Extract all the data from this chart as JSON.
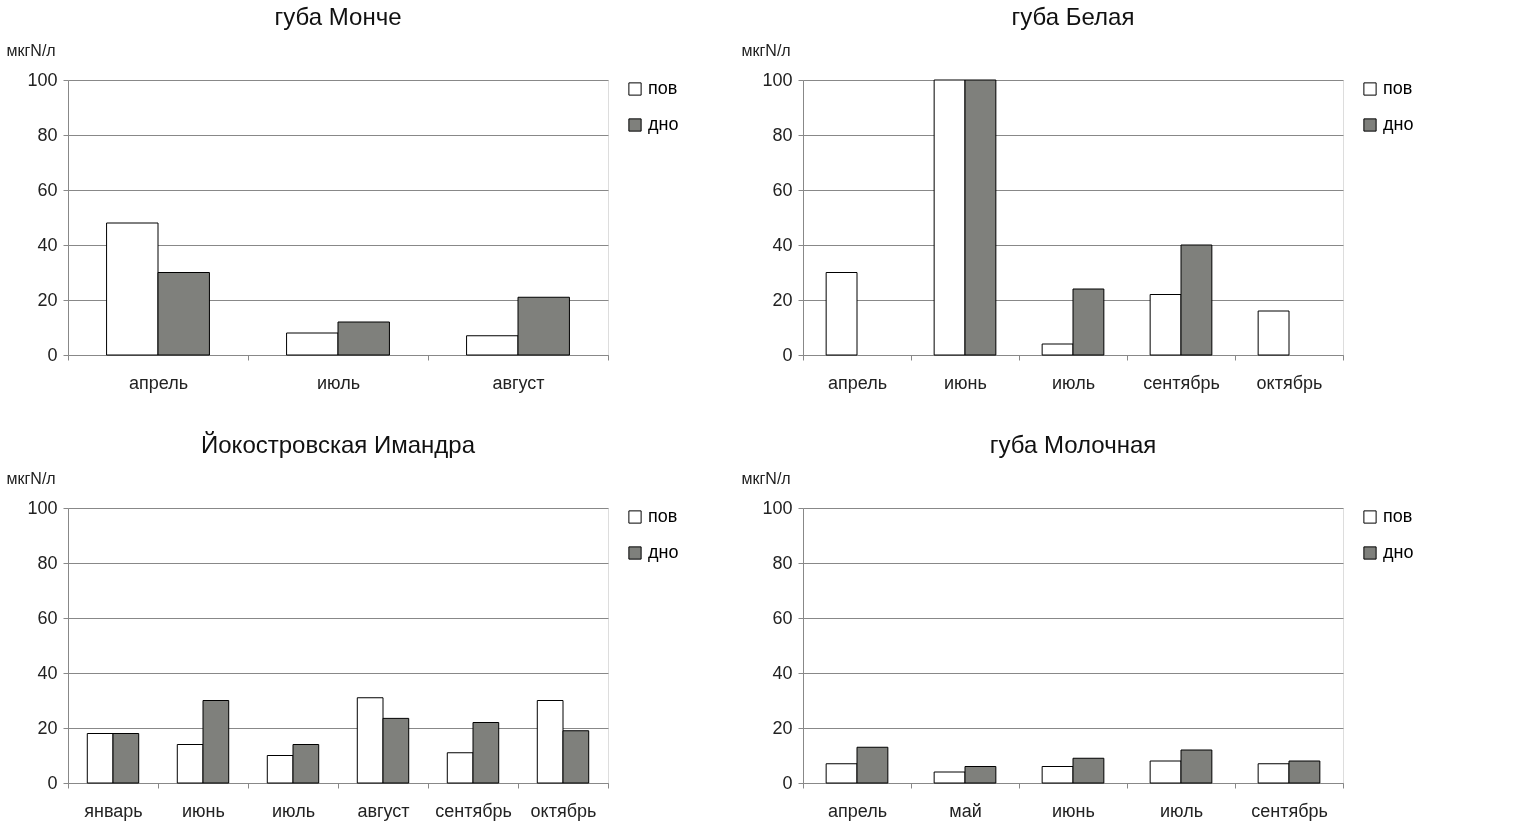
{
  "chart_data": [
    {
      "type": "bar",
      "title": "губа Монче",
      "ylabel": "мкгN/л",
      "categories": [
        "апрель",
        "июль",
        "август"
      ],
      "series": [
        {
          "name": "пов",
          "color": "#ffffff",
          "values": [
            48,
            8,
            7
          ]
        },
        {
          "name": "дно",
          "color": "#7f807c",
          "values": [
            30,
            12,
            21
          ]
        }
      ],
      "ylim": [
        0,
        100
      ],
      "yticks": [
        0,
        20,
        40,
        60,
        80,
        100
      ],
      "grid": "y",
      "legend": "right"
    },
    {
      "type": "bar",
      "title": "губа Белая",
      "ylabel": "мкгN/л",
      "categories": [
        "апрель",
        "июнь",
        "июль",
        "сентябрь",
        "октябрь"
      ],
      "series": [
        {
          "name": "пов",
          "color": "#ffffff",
          "values": [
            30,
            100,
            4,
            22,
            16
          ]
        },
        {
          "name": "дно",
          "color": "#7f807c",
          "values": [
            null,
            100,
            24,
            40,
            null
          ]
        }
      ],
      "ylim": [
        0,
        100
      ],
      "yticks": [
        0,
        20,
        40,
        60,
        80,
        100
      ],
      "grid": "y",
      "legend": "right"
    },
    {
      "type": "bar",
      "title": "Йокостровская Имандра",
      "ylabel": "мкгN/л",
      "categories": [
        "январь",
        "июнь",
        "июль",
        "август",
        "сентябрь",
        "октябрь"
      ],
      "series": [
        {
          "name": "пов",
          "color": "#ffffff",
          "values": [
            18,
            14,
            10,
            31,
            11,
            30
          ]
        },
        {
          "name": "дно",
          "color": "#7f807c",
          "values": [
            18,
            30,
            14,
            23.5,
            22,
            19
          ]
        }
      ],
      "ylim": [
        0,
        100
      ],
      "yticks": [
        0,
        20,
        40,
        60,
        80,
        100
      ],
      "grid": "y",
      "legend": "right"
    },
    {
      "type": "bar",
      "title": "губа Молочная",
      "ylabel": "мкгN/л",
      "categories": [
        "апрель",
        "май",
        "июнь",
        "июль",
        "сентябрь"
      ],
      "series": [
        {
          "name": "пов",
          "color": "#ffffff",
          "values": [
            7,
            4,
            6,
            8,
            7
          ]
        },
        {
          "name": "дно",
          "color": "#7f807c",
          "values": [
            13,
            6,
            9,
            12,
            8
          ]
        }
      ],
      "ylim": [
        0,
        100
      ],
      "yticks": [
        0,
        20,
        40,
        60,
        80,
        100
      ],
      "grid": "y",
      "legend": "right"
    }
  ]
}
